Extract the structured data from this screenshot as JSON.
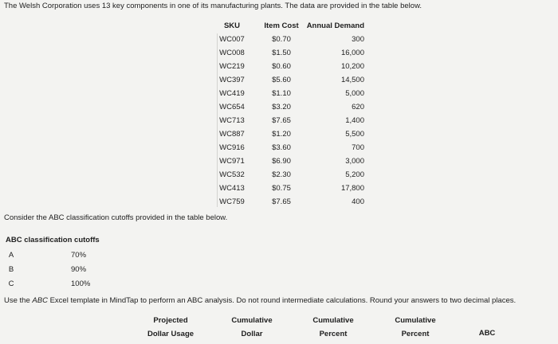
{
  "intro": "The Welsh Corporation uses 13 key components in one of its manufacturing plants. The data are provided in the table below.",
  "table": {
    "headers": [
      "SKU",
      "Item Cost",
      "Annual Demand"
    ],
    "rows": [
      [
        "WC007",
        "$0.70",
        "300"
      ],
      [
        "WC008",
        "$1.50",
        "16,000"
      ],
      [
        "WC219",
        "$0.60",
        "10,200"
      ],
      [
        "WC397",
        "$5.60",
        "14,500"
      ],
      [
        "WC419",
        "$1.10",
        "5,000"
      ],
      [
        "WC654",
        "$3.20",
        "620"
      ],
      [
        "WC713",
        "$7.65",
        "1,400"
      ],
      [
        "WC887",
        "$1.20",
        "5,500"
      ],
      [
        "WC916",
        "$3.60",
        "700"
      ],
      [
        "WC971",
        "$6.90",
        "3,000"
      ],
      [
        "WC532",
        "$2.30",
        "5,200"
      ],
      [
        "WC413",
        "$0.75",
        "17,800"
      ],
      [
        "WC759",
        "$7.65",
        "400"
      ]
    ]
  },
  "cutoffs_intro": "Consider the ABC classification cutoffs provided in the table below.",
  "cutoffs": {
    "title": "ABC classification cutoffs",
    "rows": [
      [
        "A",
        "70%"
      ],
      [
        "B",
        "90%"
      ],
      [
        "C",
        "100%"
      ]
    ]
  },
  "instruction": [
    "Use the ",
    "ABC",
    " Excel template in MindTap to perform an ABC analysis. Do not round intermediate calculations. Round your answers to two decimal places."
  ],
  "answer_headers": [
    [
      "Projected",
      "Dollar Usage"
    ],
    [
      "Cumulative",
      "Dollar"
    ],
    [
      "Cumulative",
      "Percent"
    ],
    [
      "Cumulative",
      "Percent"
    ],
    [
      "ABC"
    ]
  ]
}
